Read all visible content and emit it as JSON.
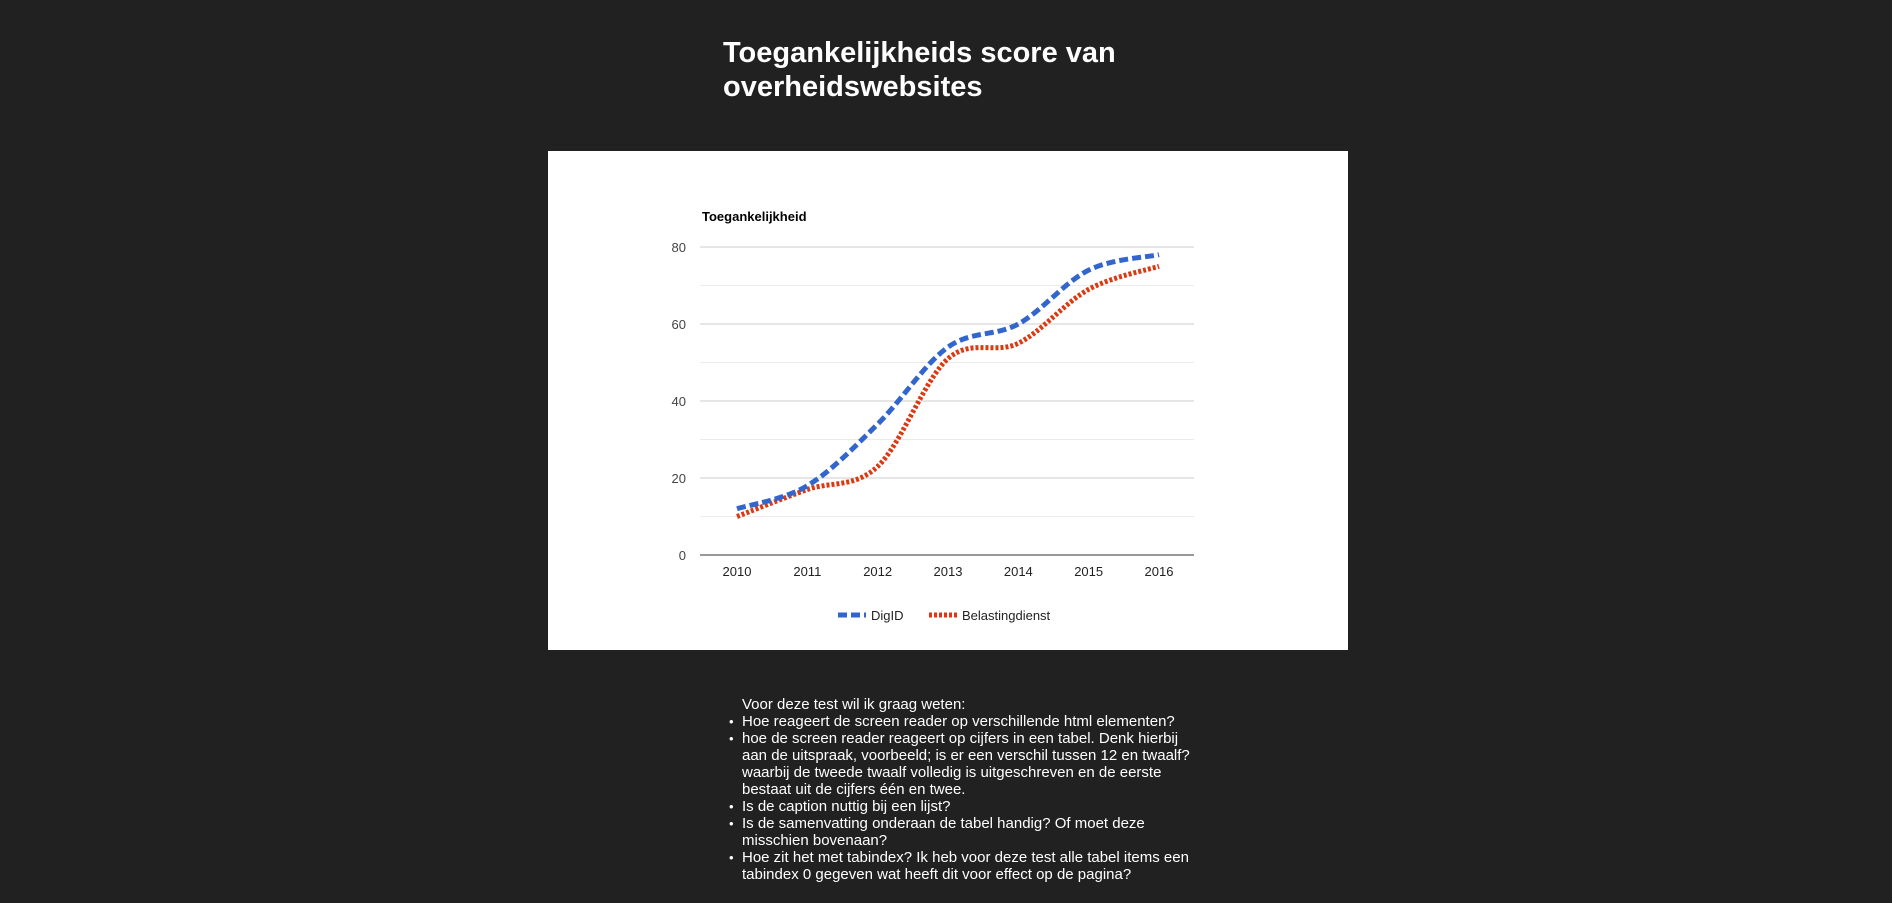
{
  "page": {
    "title": "Toegankelijkheids score van overheidswebsites"
  },
  "chart_data": {
    "type": "line",
    "title": "",
    "ylabel": "Toegankelijkheid",
    "xlabel": "",
    "x": [
      "2010",
      "2011",
      "2012",
      "2013",
      "2014",
      "2015",
      "2016"
    ],
    "ylim": [
      0,
      80
    ],
    "yticks": [
      0,
      20,
      40,
      60,
      80
    ],
    "minor_gridlines": [
      10,
      30,
      50,
      70
    ],
    "grid": true,
    "curve": "smooth",
    "legend_position": "bottom",
    "series": [
      {
        "name": "DigID",
        "values": [
          12,
          18,
          34,
          54,
          60,
          74,
          78
        ],
        "color": "#3366cc",
        "line_style": "dashed"
      },
      {
        "name": "Belastingdienst",
        "values": [
          10,
          17,
          23,
          51,
          55,
          69,
          75
        ],
        "color": "#dc3912",
        "line_style": "dotted"
      }
    ]
  },
  "notes": {
    "intro": "Voor deze test wil ik graag weten:",
    "items": [
      "Hoe reageert de screen reader op verschillende html elementen?",
      "hoe de screen reader reageert op cijfers in een tabel. Denk hierbij aan de uitspraak, voorbeeld; is er een verschil tussen 12 en twaalf? waarbij de tweede twaalf volledig is uitgeschreven en de eerste bestaat uit de cijfers één en twee.",
      "Is de caption nuttig bij een lijst?",
      "Is de samenvatting onderaan de tabel handig? Of moet deze misschien bovenaan?",
      "Hoe zit het met tabindex? Ik heb voor deze test alle tabel items een tabindex 0 gegeven wat heeft dit voor effect op de pagina?"
    ]
  }
}
